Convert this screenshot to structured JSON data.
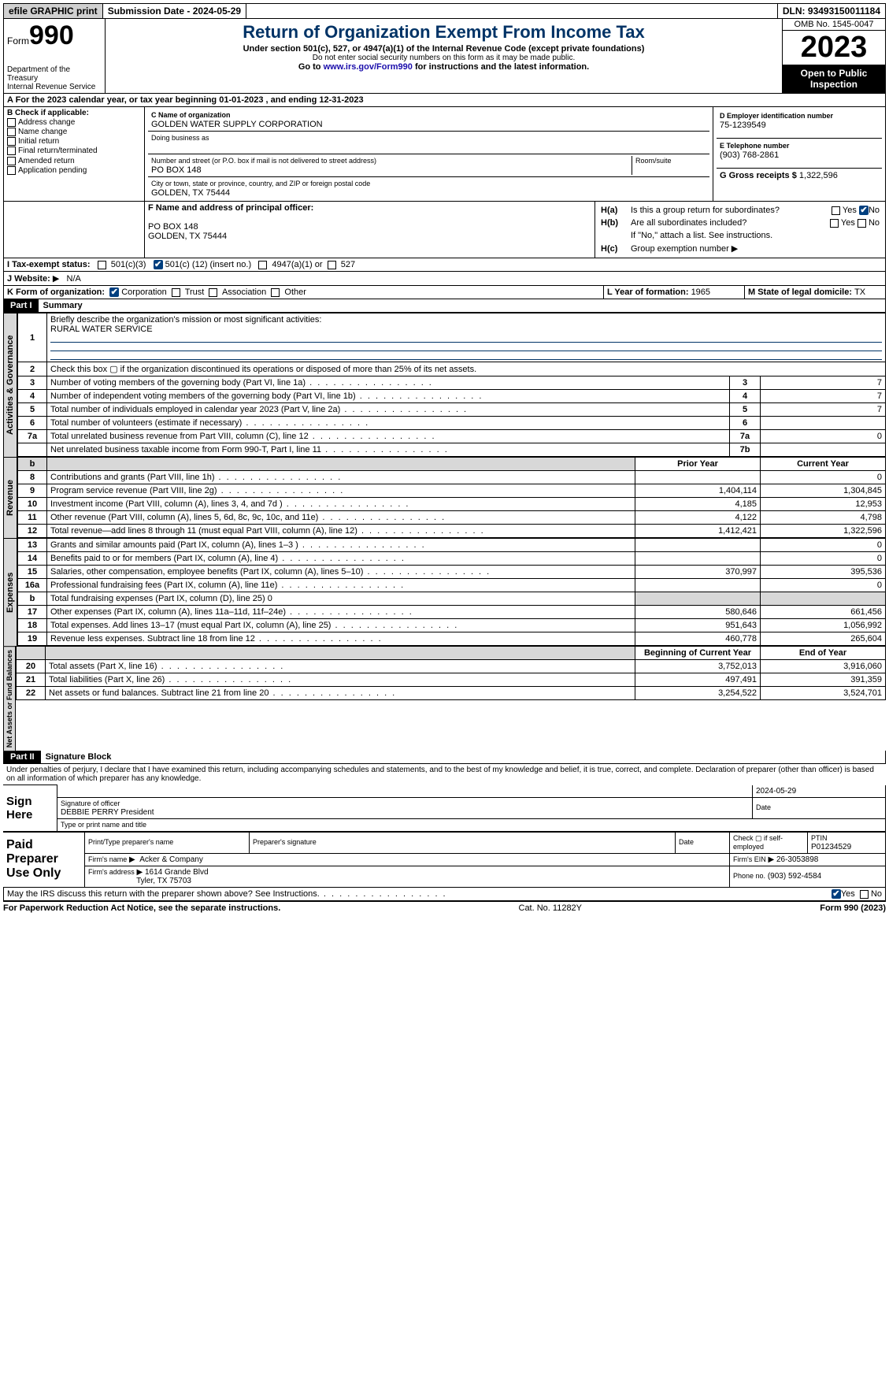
{
  "topbar": {
    "efile": "efile GRAPHIC print",
    "sub_label": "Submission Date - ",
    "sub_date": "2024-05-29",
    "dln_label": "DLN: ",
    "dln": "93493150011184"
  },
  "header": {
    "form_word": "Form",
    "form_num": "990",
    "dept": "Department of the Treasury",
    "irs": "Internal Revenue Service",
    "title": "Return of Organization Exempt From Income Tax",
    "sub1": "Under section 501(c), 527, or 4947(a)(1) of the Internal Revenue Code (except private foundations)",
    "sub2": "Do not enter social security numbers on this form as it may be made public.",
    "sub3_pre": "Go to ",
    "sub3_link": "www.irs.gov/Form990",
    "sub3_post": " for instructions and the latest information.",
    "omb": "OMB No. 1545-0047",
    "year": "2023",
    "otp": "Open to Public Inspection"
  },
  "lineA": {
    "text_pre": "A   For the 2023 calendar year, or tax year beginning ",
    "begin": "01-01-2023",
    "mid": "   , and ending ",
    "end": "12-31-2023"
  },
  "colB": {
    "hdr": "B Check if applicable:",
    "items": [
      "Address change",
      "Name change",
      "Initial return",
      "Final return/terminated",
      "Amended return",
      "Application pending"
    ]
  },
  "org": {
    "c_lbl": "C Name of organization",
    "c_val": "GOLDEN WATER SUPPLY CORPORATION",
    "dba_lbl": "Doing business as",
    "street_lbl": "Number and street (or P.O. box if mail is not delivered to street address)",
    "street_val": "PO BOX 148",
    "room_lbl": "Room/suite",
    "city_lbl": "City or town, state or province, country, and ZIP or foreign postal code",
    "city_val": "GOLDEN, TX  75444"
  },
  "right": {
    "d_lbl": "D Employer identification number",
    "d_val": "75-1239549",
    "e_lbl": "E Telephone number",
    "e_val": "(903) 768-2861",
    "g_lbl": "G Gross receipts $ ",
    "g_val": "1,322,596"
  },
  "f": {
    "lbl": "F  Name and address of principal officer:",
    "l1": "PO BOX 148",
    "l2": "GOLDEN, TX  75444"
  },
  "h": {
    "a_lbl": "H(a)",
    "a_txt": "Is this a group return for subordinates?",
    "yes": "Yes",
    "no": "No",
    "b_lbl": "H(b)",
    "b_txt": "Are all subordinates included?",
    "b_note": "If \"No,\" attach a list. See instructions.",
    "c_lbl": "H(c)",
    "c_txt": "Group exemption number",
    "arrow": "▶"
  },
  "i": {
    "lbl": "I   Tax-exempt status:",
    "c3": "501(c)(3)",
    "c": "501(c) (",
    "cnum": "12",
    "cend": ") (insert no.)",
    "a1": "4947(a)(1) or",
    "s527": "527"
  },
  "j": {
    "lbl": "J   Website:",
    "val": "N/A",
    "arrow": "▶"
  },
  "k": {
    "lbl": "K Form of organization:",
    "corp": "Corporation",
    "trust": "Trust",
    "assoc": "Association",
    "other": "Other"
  },
  "l": {
    "lbl": "L Year of formation: ",
    "val": "1965"
  },
  "m": {
    "lbl": "M State of legal domicile: ",
    "val": "TX"
  },
  "part1": {
    "bar": "Part I",
    "title": "Summary",
    "l1": "Briefly describe the organization's mission or most significant activities:",
    "l1v": "RURAL WATER SERVICE",
    "l2": "Check this box ▢ if the organization discontinued its operations or disposed of more than 25% of its net assets.",
    "rows": [
      {
        "n": "3",
        "t": "Number of voting members of the governing body (Part VI, line 1a)",
        "r": "3",
        "v": "7"
      },
      {
        "n": "4",
        "t": "Number of independent voting members of the governing body (Part VI, line 1b)",
        "r": "4",
        "v": "7"
      },
      {
        "n": "5",
        "t": "Total number of individuals employed in calendar year 2023 (Part V, line 2a)",
        "r": "5",
        "v": "7"
      },
      {
        "n": "6",
        "t": "Total number of volunteers (estimate if necessary)",
        "r": "6",
        "v": ""
      },
      {
        "n": "7a",
        "t": "Total unrelated business revenue from Part VIII, column (C), line 12",
        "r": "7a",
        "v": "0"
      },
      {
        "n": "",
        "t": "Net unrelated business taxable income from Form 990-T, Part I, line 11",
        "r": "7b",
        "v": ""
      }
    ],
    "hdr_prior": "Prior Year",
    "hdr_curr": "Current Year",
    "rev": [
      {
        "n": "8",
        "t": "Contributions and grants (Part VIII, line 1h)",
        "p": "",
        "c": "0"
      },
      {
        "n": "9",
        "t": "Program service revenue (Part VIII, line 2g)",
        "p": "1,404,114",
        "c": "1,304,845"
      },
      {
        "n": "10",
        "t": "Investment income (Part VIII, column (A), lines 3, 4, and 7d )",
        "p": "4,185",
        "c": "12,953"
      },
      {
        "n": "11",
        "t": "Other revenue (Part VIII, column (A), lines 5, 6d, 8c, 9c, 10c, and 11e)",
        "p": "4,122",
        "c": "4,798"
      },
      {
        "n": "12",
        "t": "Total revenue—add lines 8 through 11 (must equal Part VIII, column (A), line 12)",
        "p": "1,412,421",
        "c": "1,322,596"
      }
    ],
    "exp": [
      {
        "n": "13",
        "t": "Grants and similar amounts paid (Part IX, column (A), lines 1–3 )",
        "p": "",
        "c": "0"
      },
      {
        "n": "14",
        "t": "Benefits paid to or for members (Part IX, column (A), line 4)",
        "p": "",
        "c": "0"
      },
      {
        "n": "15",
        "t": "Salaries, other compensation, employee benefits (Part IX, column (A), lines 5–10)",
        "p": "370,997",
        "c": "395,536"
      },
      {
        "n": "16a",
        "t": "Professional fundraising fees (Part IX, column (A), line 11e)",
        "p": "",
        "c": "0"
      },
      {
        "n": "b",
        "t": "Total fundraising expenses (Part IX, column (D), line 25) 0",
        "p": "shade",
        "c": "shade",
        "small": true
      },
      {
        "n": "17",
        "t": "Other expenses (Part IX, column (A), lines 11a–11d, 11f–24e)",
        "p": "580,646",
        "c": "661,456"
      },
      {
        "n": "18",
        "t": "Total expenses. Add lines 13–17 (must equal Part IX, column (A), line 25)",
        "p": "951,643",
        "c": "1,056,992"
      },
      {
        "n": "19",
        "t": "Revenue less expenses. Subtract line 18 from line 12",
        "p": "460,778",
        "c": "265,604"
      }
    ],
    "hdr_bcy": "Beginning of Current Year",
    "hdr_eoy": "End of Year",
    "net": [
      {
        "n": "20",
        "t": "Total assets (Part X, line 16)",
        "p": "3,752,013",
        "c": "3,916,060"
      },
      {
        "n": "21",
        "t": "Total liabilities (Part X, line 26)",
        "p": "497,491",
        "c": "391,359"
      },
      {
        "n": "22",
        "t": "Net assets or fund balances. Subtract line 21 from line 20",
        "p": "3,254,522",
        "c": "3,524,701"
      }
    ],
    "side_ag": "Activities & Governance",
    "side_rev": "Revenue",
    "side_exp": "Expenses",
    "side_net": "Net Assets or Fund Balances"
  },
  "part2": {
    "bar": "Part II",
    "title": "Signature Block",
    "decl": "Under penalties of perjury, I declare that I have examined this return, including accompanying schedules and statements, and to the best of my knowledge and belief, it is true, correct, and complete. Declaration of preparer (other than officer) is based on all information of which preparer has any knowledge."
  },
  "sign": {
    "here": "Sign Here",
    "sig_lbl": "Signature of officer",
    "officer": "DEBBIE PERRY  President",
    "type_lbl": "Type or print name and title",
    "date_lbl": "Date",
    "date": "2024-05-29"
  },
  "prep": {
    "title": "Paid Preparer Use Only",
    "h1": "Print/Type preparer's name",
    "h2": "Preparer's signature",
    "h3": "Date",
    "h4_pre": "Check ▢ if self-employed",
    "h5": "PTIN",
    "ptin": "P01234529",
    "firm_lbl": "Firm's name",
    "firm": "Acker & Company",
    "ein_lbl": "Firm's EIN",
    "ein": "26-3053898",
    "addr_lbl": "Firm's address",
    "addr1": "1614 Grande Blvd",
    "addr2": "Tyler, TX  75703",
    "ph_lbl": "Phone no.",
    "ph": "(903) 592-4584",
    "q": "May the IRS discuss this return with the preparer shown above? See Instructions.",
    "yes": "Yes",
    "no": "No"
  },
  "footer": {
    "l": "For Paperwork Reduction Act Notice, see the separate instructions.",
    "c": "Cat. No. 11282Y",
    "r": "Form 990 (2023)"
  }
}
